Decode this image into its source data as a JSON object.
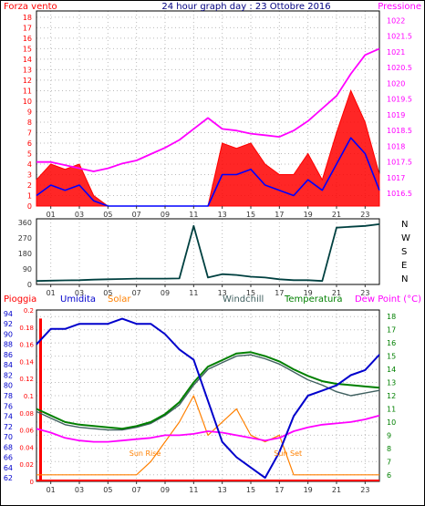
{
  "chart_data": [
    {
      "type": "line",
      "panel": "wind-pressure",
      "title": "24 hour graph day : 23 Ottobre 2016",
      "left_axis_label": "Forza vento",
      "right_axis_label": "Pressione",
      "x_hours": [
        0,
        1,
        2,
        3,
        4,
        5,
        6,
        7,
        8,
        9,
        10,
        11,
        12,
        13,
        14,
        15,
        16,
        17,
        18,
        19,
        20,
        21,
        22,
        23,
        24
      ],
      "x_tick_labels": [
        "01",
        "03",
        "05",
        "07",
        "09",
        "11",
        "13",
        "15",
        "17",
        "19",
        "21",
        "23"
      ],
      "left_ticks": [
        "0",
        "1",
        "2",
        "3",
        "4",
        "5",
        "6",
        "7",
        "8",
        "9",
        "10",
        "11",
        "12",
        "13",
        "14",
        "15",
        "16",
        "17",
        "18"
      ],
      "right_ticks": [
        "1016.5",
        "1017",
        "1017.5",
        "1018",
        "1018.5",
        "1019",
        "1019.5",
        "1020",
        "1020.5",
        "1021",
        "1021.5",
        "1022"
      ],
      "left_ylim": [
        0,
        18.6
      ],
      "right_ylim": [
        1016.1,
        1022.3
      ],
      "series": [
        {
          "name": "Forza vento",
          "color": "#ff0000",
          "axis": "left",
          "values": [
            2.5,
            4,
            3.5,
            4,
            1,
            0,
            0,
            0,
            0,
            0,
            0,
            0,
            0,
            6,
            5.5,
            6,
            4,
            3,
            3,
            5,
            2.5,
            7,
            11,
            8,
            3
          ]
        },
        {
          "name": "",
          "color": "#0000ff",
          "axis": "left",
          "values": [
            1,
            2,
            1.5,
            2,
            0.5,
            0,
            0,
            0,
            0,
            0,
            0,
            0,
            0,
            3,
            3,
            3.5,
            2,
            1.5,
            1,
            2.5,
            1.5,
            4,
            6.5,
            5,
            1.5
          ]
        },
        {
          "name": "Pressione",
          "color": "#ff00ff",
          "axis": "right",
          "values": [
            1017.5,
            1017.5,
            1017.4,
            1017.3,
            1017.2,
            1017.3,
            1017.45,
            1017.55,
            1017.75,
            1017.95,
            1018.2,
            1018.55,
            1018.9,
            1018.55,
            1018.5,
            1018.4,
            1018.35,
            1018.3,
            1018.5,
            1018.8,
            1019.2,
            1019.6,
            1020.3,
            1020.9,
            1021.1
          ]
        }
      ]
    },
    {
      "type": "line",
      "panel": "wind-direction",
      "x_hours": [
        0,
        1,
        2,
        3,
        4,
        5,
        6,
        7,
        8,
        9,
        10,
        11,
        12,
        13,
        14,
        15,
        16,
        17,
        18,
        19,
        20,
        21,
        22,
        23,
        24
      ],
      "x_tick_labels": [
        "01",
        "03",
        "05",
        "07",
        "09",
        "11",
        "13",
        "15",
        "17",
        "19",
        "21",
        "23"
      ],
      "left_ticks": [
        "0",
        "90",
        "180",
        "270",
        "360"
      ],
      "right_labels": [
        "N",
        "W",
        "S",
        "E",
        "N"
      ],
      "ylim": [
        0,
        360
      ],
      "series": [
        {
          "name": "",
          "color": "#004040",
          "values": [
            20,
            22,
            24,
            25,
            28,
            30,
            32,
            34,
            34,
            34,
            35,
            340,
            40,
            60,
            55,
            45,
            40,
            30,
            25,
            25,
            20,
            330,
            335,
            340,
            350
          ]
        }
      ]
    },
    {
      "type": "line",
      "panel": "rain-humidity-solar-temp",
      "x_hours": [
        0,
        1,
        2,
        3,
        4,
        5,
        6,
        7,
        8,
        9,
        10,
        11,
        12,
        13,
        14,
        15,
        16,
        17,
        18,
        19,
        20,
        21,
        22,
        23,
        24
      ],
      "x_tick_labels": [
        "01",
        "03",
        "05",
        "07",
        "09",
        "11",
        "13",
        "15",
        "17",
        "19",
        "21",
        "23"
      ],
      "header_labels": {
        "rain": "Pioggia",
        "humidity": "Umidita",
        "solar": "Solar",
        "windchill": "Windchill",
        "temperature": "Temperatura",
        "dewpoint": "Dew Point (°C)"
      },
      "rain_ticks": [
        "0",
        "0.02",
        "0.04",
        "0.06",
        "0.08",
        "0.1",
        "0.12",
        "0.14",
        "0.16",
        "0.18",
        "0.2"
      ],
      "humidity_ticks": [
        "62",
        "64",
        "66",
        "68",
        "70",
        "72",
        "74",
        "76",
        "78",
        "80",
        "82",
        "84",
        "86",
        "88",
        "90",
        "92",
        "94"
      ],
      "temp_ticks": [
        "6",
        "7",
        "8",
        "9",
        "10",
        "11",
        "12",
        "13",
        "14",
        "15",
        "16",
        "17",
        "18"
      ],
      "rain_ylim": [
        0,
        0.2
      ],
      "humidity_ylim": [
        61.3,
        94.7
      ],
      "temp_ylim": [
        5.5,
        18.5
      ],
      "annotations": [
        {
          "text": "Sun Rise",
          "hour": 7.6
        },
        {
          "text": "Sun Set",
          "hour": 17.6
        }
      ],
      "series": [
        {
          "name": "Pioggia",
          "color": "#ff0000",
          "axis": "rain",
          "values": [
            0.19,
            0,
            0,
            0,
            0,
            0,
            0,
            0,
            0,
            0,
            0,
            0,
            0,
            0,
            0,
            0,
            0,
            0,
            0,
            0,
            0,
            0,
            0,
            0,
            0
          ]
        },
        {
          "name": "Umidita",
          "color": "#0000cc",
          "axis": "humidity",
          "values": [
            88,
            91,
            91,
            92,
            92,
            92,
            93,
            92,
            92,
            90,
            87,
            85,
            77,
            69,
            66,
            64,
            62,
            67,
            74,
            78,
            79,
            80,
            82,
            83,
            86
          ]
        },
        {
          "name": "Solar",
          "color": "#ff8000",
          "axis": "temp",
          "values": [
            6,
            6,
            6,
            6,
            6,
            6,
            6,
            6,
            7,
            8.5,
            10,
            12,
            9,
            10,
            11,
            9,
            8.5,
            9,
            6,
            6,
            6,
            6,
            6,
            6,
            6
          ]
        },
        {
          "name": "Temperatura",
          "color": "#008000",
          "axis": "temp",
          "values": [
            11,
            10.5,
            10,
            9.8,
            9.7,
            9.6,
            9.5,
            9.7,
            10,
            10.6,
            11.5,
            13,
            14.2,
            14.7,
            15.2,
            15.3,
            15,
            14.6,
            14,
            13.5,
            13.1,
            12.9,
            12.8,
            12.7,
            12.6
          ]
        },
        {
          "name": "Windchill",
          "color": "#406060",
          "axis": "temp",
          "values": [
            10.8,
            10.3,
            9.8,
            9.6,
            9.5,
            9.4,
            9.4,
            9.6,
            9.9,
            10.5,
            11.3,
            12.8,
            14,
            14.5,
            15,
            15.1,
            14.8,
            14.4,
            13.8,
            13.2,
            12.8,
            12.3,
            12,
            12.2,
            12.4
          ]
        },
        {
          "name": "Dew Point (°C)",
          "color": "#ff00ff",
          "axis": "temp",
          "values": [
            9.5,
            9.2,
            8.8,
            8.6,
            8.5,
            8.5,
            8.6,
            8.7,
            8.8,
            9,
            9,
            9.1,
            9.3,
            9.2,
            9,
            8.8,
            8.6,
            8.8,
            9.3,
            9.6,
            9.8,
            9.9,
            10,
            10.2,
            10.5
          ]
        }
      ]
    }
  ]
}
